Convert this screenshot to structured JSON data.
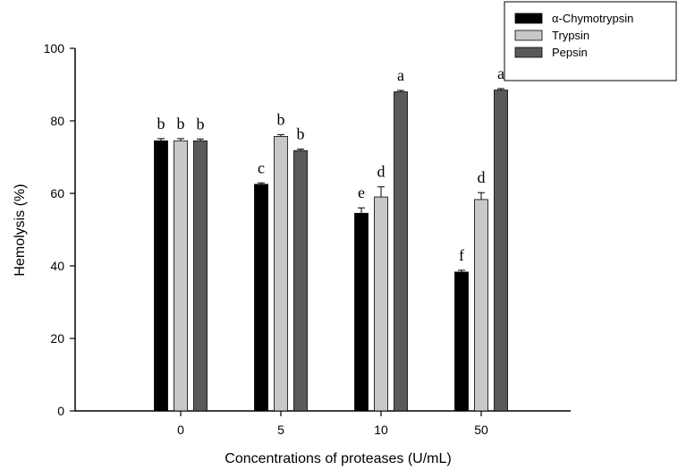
{
  "chart_data": {
    "type": "bar",
    "title": "",
    "xlabel": "Concentrations of proteases (U/mL)",
    "ylabel": "Hemolysis (%)",
    "ylim": [
      0,
      100
    ],
    "yticks": [
      0,
      20,
      40,
      60,
      80,
      100
    ],
    "categories": [
      "0",
      "5",
      "10",
      "50"
    ],
    "series": [
      {
        "name": "α-Chymotrypsin",
        "color": "#000000",
        "values": [
          74.5,
          62.5,
          54.5,
          38.3
        ],
        "errors": [
          0.6,
          0.4,
          1.5,
          0.5
        ],
        "labels": [
          "b",
          "c",
          "e",
          "f"
        ]
      },
      {
        "name": "Trypsin",
        "color": "#c8c8c8",
        "values": [
          74.5,
          75.7,
          59.0,
          58.3
        ],
        "errors": [
          0.6,
          0.5,
          2.8,
          1.9
        ],
        "labels": [
          "b",
          "b",
          "d",
          "d"
        ]
      },
      {
        "name": "Pepsin",
        "color": "#5a5a5a",
        "values": [
          74.5,
          71.8,
          88.0,
          88.5
        ],
        "errors": [
          0.5,
          0.4,
          0.4,
          0.4
        ],
        "labels": [
          "b",
          "b",
          "a",
          "a"
        ]
      }
    ],
    "legend_position": "top-right",
    "grid": false
  }
}
